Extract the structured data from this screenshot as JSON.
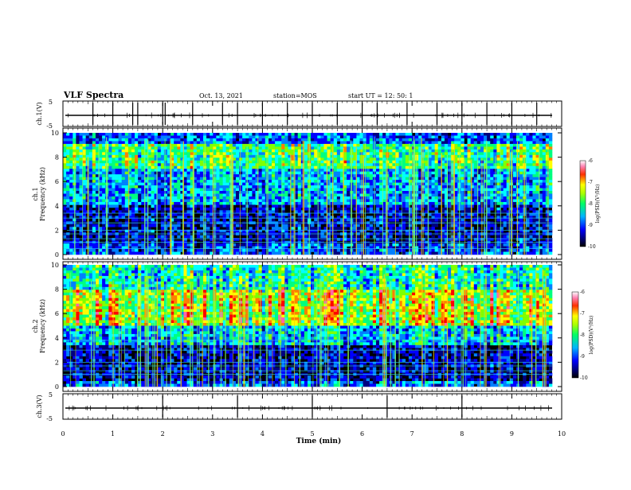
{
  "header": {
    "title": "VLF Spectra",
    "date": "Oct. 13, 2021",
    "station": "station=MOS",
    "start": "start  UT =   12: 50: 1"
  },
  "chart_data": [
    {
      "type": "line",
      "panel": "ch1-waveform",
      "ylabel": "ch.1(V)",
      "ylim": [
        -5,
        5
      ],
      "yticks": [
        "5",
        "-5"
      ],
      "baseline_value": 0,
      "spike_times_min": [
        0.6,
        1.0,
        1.4,
        1.5,
        2.0,
        2.05,
        2.6,
        3.2,
        3.5,
        4.0,
        4.5,
        5.0,
        5.5,
        6.0,
        6.3,
        6.9,
        7.5,
        8.0,
        8.5,
        9.0,
        9.5
      ]
    },
    {
      "type": "heatmap",
      "panel": "ch1-spectrogram",
      "ylabel": "ch.1 Frequency (kHz)",
      "ylim": [
        0,
        10
      ],
      "yticks": [
        "0",
        "2",
        "4",
        "6",
        "8",
        "10"
      ],
      "xlim": [
        0,
        10
      ],
      "colorbar": {
        "label": "log(PSD)(V²/Hz)",
        "range": [
          -10,
          -6
        ],
        "ticks": [
          "-6",
          "-7",
          "-8",
          "-9",
          "-10"
        ]
      },
      "intense_band_khz": [
        7,
        9
      ],
      "narrowband_lines_khz": [
        0.5,
        1.0,
        1.3,
        1.7,
        2.0,
        2.6,
        3.0,
        3.4
      ]
    },
    {
      "type": "heatmap",
      "panel": "ch2-spectrogram",
      "ylabel": "ch.2 Frequency (kHz)",
      "ylim": [
        0,
        10
      ],
      "yticks": [
        "0",
        "2",
        "4",
        "6",
        "8",
        "10"
      ],
      "xlim": [
        0,
        10
      ],
      "colorbar": {
        "label": "log(PSD)(V²/Hz)",
        "range": [
          -10,
          -6
        ],
        "ticks": [
          "-6",
          "-7",
          "-8",
          "-9",
          "-10"
        ]
      },
      "intense_band_khz": [
        5,
        8
      ],
      "narrowband_lines_khz": [
        1.0,
        1.3,
        1.7,
        2.0,
        3.0,
        3.8
      ]
    },
    {
      "type": "line",
      "panel": "ch3-waveform",
      "ylabel": "ch.3(V)",
      "ylim": [
        -5,
        5
      ],
      "yticks": [
        "5",
        "-5"
      ],
      "baseline_value": 0,
      "spike_times_min": [
        2.0,
        3.5,
        5.0,
        6.5,
        8.0
      ]
    }
  ],
  "xaxis": {
    "label": "Time (min)",
    "range": [
      0,
      10
    ],
    "ticks": [
      "0",
      "1",
      "2",
      "3",
      "4",
      "5",
      "6",
      "7",
      "8",
      "9",
      "10"
    ]
  },
  "colors": {
    "spectrum": [
      "#000000",
      "#000080",
      "#0000ff",
      "#0080ff",
      "#00ffff",
      "#00ff80",
      "#80ff00",
      "#ffff00",
      "#ff8000",
      "#ff0000",
      "#ff66aa",
      "#ffffff"
    ]
  }
}
